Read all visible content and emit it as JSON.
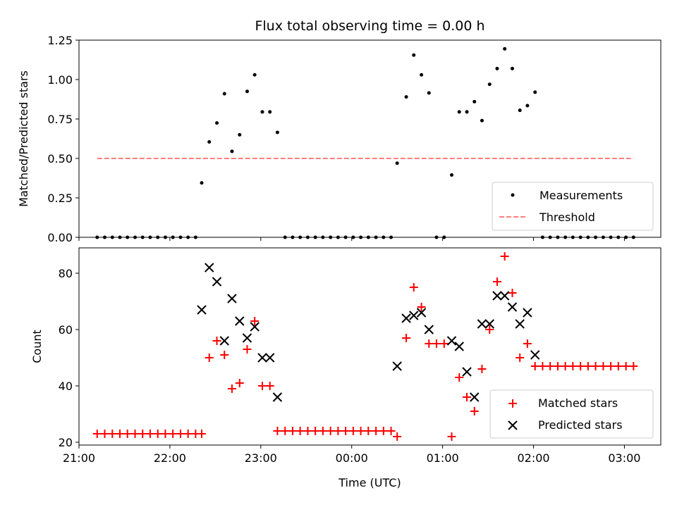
{
  "chart_data": [
    {
      "type": "scatter",
      "title": "Flux total observing time = 0.00 h",
      "ylabel": "Matched/Predicted stars",
      "xlim": [
        21.0,
        27.4
      ],
      "ylim": [
        0.0,
        1.25
      ],
      "yticks": [
        0.0,
        0.25,
        0.5,
        0.75,
        1.0,
        1.25
      ],
      "ytick_labels": [
        "0.00",
        "0.25",
        "0.50",
        "0.75",
        "1.00",
        "1.25"
      ],
      "xticks": [
        21,
        22,
        23,
        24,
        25,
        26,
        27
      ],
      "legend_position": "lower right",
      "series": [
        {
          "name": "Measurements",
          "marker": "dot",
          "color": "#000000",
          "points": [
            [
              21.2,
              0
            ],
            [
              21.283,
              0
            ],
            [
              21.367,
              0
            ],
            [
              21.45,
              0
            ],
            [
              21.533,
              0
            ],
            [
              21.617,
              0
            ],
            [
              21.7,
              0
            ],
            [
              21.783,
              0
            ],
            [
              21.867,
              0
            ],
            [
              21.95,
              0
            ],
            [
              22.033,
              0
            ],
            [
              22.117,
              0
            ],
            [
              22.2,
              0
            ],
            [
              22.283,
              0
            ],
            [
              22.35,
              0.345
            ],
            [
              22.433,
              0.605
            ],
            [
              22.517,
              0.725
            ],
            [
              22.6,
              0.91
            ],
            [
              22.683,
              0.545
            ],
            [
              22.767,
              0.65
            ],
            [
              22.85,
              0.925
            ],
            [
              22.933,
              1.03
            ],
            [
              23.017,
              0.795
            ],
            [
              23.1,
              0.795
            ],
            [
              23.183,
              0.665
            ],
            [
              23.267,
              0
            ],
            [
              23.35,
              0
            ],
            [
              23.433,
              0
            ],
            [
              23.517,
              0
            ],
            [
              23.6,
              0
            ],
            [
              23.683,
              0
            ],
            [
              23.767,
              0
            ],
            [
              23.85,
              0
            ],
            [
              23.933,
              0
            ],
            [
              24.017,
              0
            ],
            [
              24.1,
              0
            ],
            [
              24.183,
              0
            ],
            [
              24.267,
              0
            ],
            [
              24.35,
              0
            ],
            [
              24.433,
              0
            ],
            [
              24.5,
              0.47
            ],
            [
              24.6,
              0.89
            ],
            [
              24.683,
              1.155
            ],
            [
              24.767,
              1.03
            ],
            [
              24.85,
              0.915
            ],
            [
              24.933,
              0
            ],
            [
              25.017,
              0
            ],
            [
              25.1,
              0.395
            ],
            [
              25.183,
              0.795
            ],
            [
              25.267,
              0.795
            ],
            [
              25.35,
              0.86
            ],
            [
              25.433,
              0.74
            ],
            [
              25.517,
              0.97
            ],
            [
              25.6,
              1.07
            ],
            [
              25.683,
              1.195
            ],
            [
              25.767,
              1.07
            ],
            [
              25.85,
              0.805
            ],
            [
              25.933,
              0.835
            ],
            [
              26.017,
              0.92
            ],
            [
              26.1,
              0
            ],
            [
              26.183,
              0
            ],
            [
              26.267,
              0
            ],
            [
              26.35,
              0
            ],
            [
              26.433,
              0
            ],
            [
              26.517,
              0
            ],
            [
              26.6,
              0
            ],
            [
              26.683,
              0
            ],
            [
              26.767,
              0
            ],
            [
              26.85,
              0
            ],
            [
              26.933,
              0
            ],
            [
              27.017,
              0
            ],
            [
              27.1,
              0
            ]
          ]
        },
        {
          "name": "Threshold",
          "line_style": "dashed",
          "color": "#ff7f7f",
          "points": [
            [
              21.2,
              0.5
            ],
            [
              27.1,
              0.5
            ]
          ]
        }
      ]
    },
    {
      "type": "scatter",
      "ylabel": "Count",
      "xlabel": "Time (UTC)",
      "xlim": [
        21.0,
        27.4
      ],
      "ylim": [
        19.0,
        89.0
      ],
      "yticks": [
        20,
        40,
        60,
        80
      ],
      "xticks": [
        21,
        22,
        23,
        24,
        25,
        26,
        27
      ],
      "xtick_labels": [
        "21:00",
        "22:00",
        "23:00",
        "00:00",
        "01:00",
        "02:00",
        "03:00"
      ],
      "legend_position": "lower right",
      "series": [
        {
          "name": "Matched stars",
          "marker": "plus",
          "color": "#ff0000",
          "points": [
            [
              21.2,
              23
            ],
            [
              21.283,
              23
            ],
            [
              21.367,
              23
            ],
            [
              21.45,
              23
            ],
            [
              21.533,
              23
            ],
            [
              21.617,
              23
            ],
            [
              21.7,
              23
            ],
            [
              21.783,
              23
            ],
            [
              21.867,
              23
            ],
            [
              21.95,
              23
            ],
            [
              22.033,
              23
            ],
            [
              22.117,
              23
            ],
            [
              22.2,
              23
            ],
            [
              22.283,
              23
            ],
            [
              22.35,
              23
            ],
            [
              22.433,
              50
            ],
            [
              22.517,
              56
            ],
            [
              22.6,
              51
            ],
            [
              22.683,
              39
            ],
            [
              22.767,
              41
            ],
            [
              22.85,
              53
            ],
            [
              22.933,
              63
            ],
            [
              23.017,
              40
            ],
            [
              23.1,
              40
            ],
            [
              23.183,
              24
            ],
            [
              23.267,
              24
            ],
            [
              23.35,
              24
            ],
            [
              23.433,
              24
            ],
            [
              23.517,
              24
            ],
            [
              23.6,
              24
            ],
            [
              23.683,
              24
            ],
            [
              23.767,
              24
            ],
            [
              23.85,
              24
            ],
            [
              23.933,
              24
            ],
            [
              24.017,
              24
            ],
            [
              24.1,
              24
            ],
            [
              24.183,
              24
            ],
            [
              24.267,
              24
            ],
            [
              24.35,
              24
            ],
            [
              24.433,
              24
            ],
            [
              24.5,
              22
            ],
            [
              24.6,
              57
            ],
            [
              24.683,
              75
            ],
            [
              24.767,
              68
            ],
            [
              24.85,
              55
            ],
            [
              24.933,
              55
            ],
            [
              25.017,
              55
            ],
            [
              25.1,
              22
            ],
            [
              25.183,
              43
            ],
            [
              25.267,
              36
            ],
            [
              25.35,
              31
            ],
            [
              25.433,
              46
            ],
            [
              25.517,
              60
            ],
            [
              25.6,
              77
            ],
            [
              25.683,
              86
            ],
            [
              25.767,
              73
            ],
            [
              25.85,
              50
            ],
            [
              25.933,
              55
            ],
            [
              26.017,
              47
            ],
            [
              26.1,
              47
            ],
            [
              26.183,
              47
            ],
            [
              26.267,
              47
            ],
            [
              26.35,
              47
            ],
            [
              26.433,
              47
            ],
            [
              26.517,
              47
            ],
            [
              26.6,
              47
            ],
            [
              26.683,
              47
            ],
            [
              26.767,
              47
            ],
            [
              26.85,
              47
            ],
            [
              26.933,
              47
            ],
            [
              27.017,
              47
            ],
            [
              27.1,
              47
            ]
          ]
        },
        {
          "name": "Predicted stars",
          "marker": "x",
          "color": "#000000",
          "points": [
            [
              22.35,
              67
            ],
            [
              22.433,
              82
            ],
            [
              22.517,
              77
            ],
            [
              22.6,
              56
            ],
            [
              22.683,
              71
            ],
            [
              22.767,
              63
            ],
            [
              22.85,
              57
            ],
            [
              22.933,
              61
            ],
            [
              23.017,
              50
            ],
            [
              23.1,
              50
            ],
            [
              23.183,
              36
            ],
            [
              24.5,
              47
            ],
            [
              24.6,
              64
            ],
            [
              24.683,
              65
            ],
            [
              24.767,
              66
            ],
            [
              24.85,
              60
            ],
            [
              25.1,
              56
            ],
            [
              25.183,
              54
            ],
            [
              25.267,
              45
            ],
            [
              25.35,
              36
            ],
            [
              25.433,
              62
            ],
            [
              25.517,
              62
            ],
            [
              25.6,
              72
            ],
            [
              25.683,
              72
            ],
            [
              25.767,
              68
            ],
            [
              25.85,
              62
            ],
            [
              25.933,
              66
            ],
            [
              26.017,
              51
            ]
          ]
        }
      ]
    }
  ]
}
